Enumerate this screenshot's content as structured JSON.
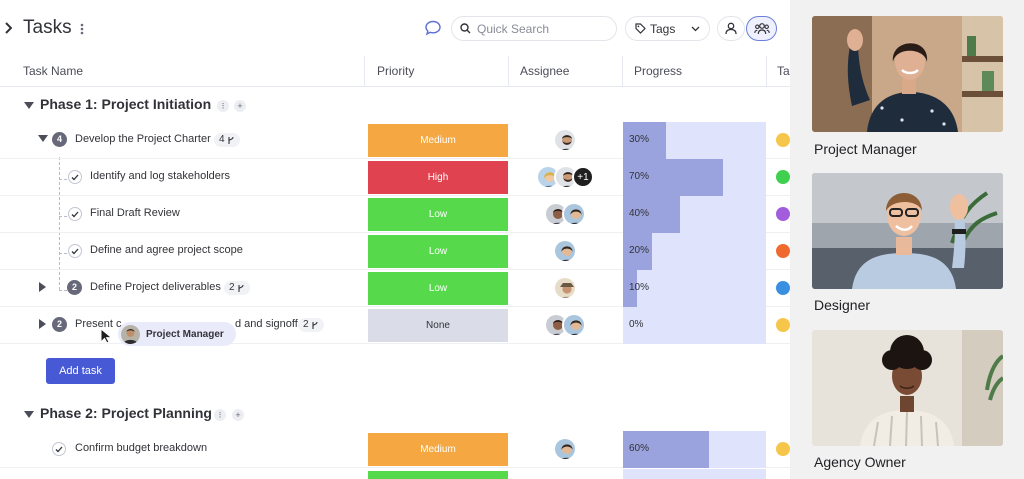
{
  "header": {
    "title": "Tasks",
    "search_placeholder": "Quick Search",
    "tags_label": "Tags"
  },
  "columns": {
    "task_name": "Task Name",
    "priority": "Priority",
    "assignee": "Assignee",
    "progress": "Progress",
    "tags": "Ta"
  },
  "phases": [
    {
      "name": "Phase 1: Project Initiation"
    },
    {
      "name": "Phase 2: Project Planning"
    }
  ],
  "rows": [
    {
      "num": "4",
      "name": "Develop the Project Charter",
      "subtasks": "4",
      "priority": "Medium",
      "priority_color": "#f5a742",
      "assignees": [
        "man-beard"
      ],
      "extra": "",
      "progress": 30,
      "progress_label": "30%",
      "tag_color": "#f5c64a"
    },
    {
      "num": "",
      "name": "Identify and log stakeholders",
      "subtasks": "",
      "priority": "High",
      "priority_color": "#e0434f",
      "assignees": [
        "woman-blonde",
        "man-beard"
      ],
      "extra": "+1",
      "progress": 70,
      "progress_label": "70%",
      "tag_color": "#3fd04f"
    },
    {
      "num": "",
      "name": "Final Draft Review",
      "subtasks": "",
      "priority": "Low",
      "priority_color": "#57d94c",
      "assignees": [
        "man-dark",
        "woman-light"
      ],
      "extra": "",
      "progress": 40,
      "progress_label": "40%",
      "tag_color": "#a25ddc"
    },
    {
      "num": "",
      "name": "Define and agree project scope",
      "subtasks": "",
      "priority": "Low",
      "priority_color": "#57d94c",
      "assignees": [
        "woman-light"
      ],
      "extra": "",
      "progress": 20,
      "progress_label": "20%",
      "tag_color": "#f06a30"
    },
    {
      "num": "2",
      "name": "Define Project deliverables",
      "subtasks": "2",
      "priority": "Low",
      "priority_color": "#57d94c",
      "assignees": [
        "man-hat"
      ],
      "extra": "",
      "progress": 10,
      "progress_label": "10%",
      "tag_color": "#3b8fe0"
    },
    {
      "num": "2",
      "name_start": "Present c",
      "name_end": "d and signoff",
      "subtasks": "2",
      "priority": "None",
      "priority_color": "#dadde7",
      "assignees": [
        "man-dark",
        "woman-light"
      ],
      "extra": "",
      "progress": 0,
      "progress_label": "0%",
      "tag_color": "#f5c64a"
    },
    {
      "num": "",
      "name": "Confirm budget breakdown",
      "subtasks": "",
      "priority": "Medium",
      "priority_color": "#f5a742",
      "assignees": [
        "woman-light"
      ],
      "extra": "",
      "progress": 60,
      "progress_label": "60%",
      "tag_color": "#f5c64a"
    }
  ],
  "add_task_label": "Add task",
  "cursor_label": "Project Manager",
  "participants": [
    {
      "name": "Project Manager"
    },
    {
      "name": "Designer"
    },
    {
      "name": "Agency Owner"
    }
  ],
  "colors": {
    "accent": "#4759d4",
    "progress_track": "#dfe3fb",
    "progress_fill": "#9aa3dd"
  }
}
